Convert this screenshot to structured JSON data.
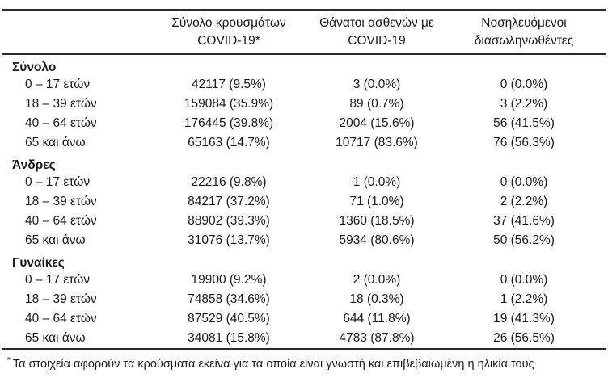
{
  "table": {
    "col_headers": [
      {
        "line1": "Σύνολο κρουσμάτων",
        "line2": "COVID-19*"
      },
      {
        "line1": "Θάνατοι ασθενών με",
        "line2": "COVID-19"
      },
      {
        "line1": "Νοσηλευόμενοι",
        "line2": "διασωληνωθέντες"
      }
    ],
    "groups": [
      {
        "label": "Σύνολο",
        "rows": [
          {
            "label": "0 – 17 ετών",
            "cases": "42117 (9.5%)",
            "deaths": "3 (0.0%)",
            "intubated": "0 (0.0%)"
          },
          {
            "label": "18 – 39 ετών",
            "cases": "159084 (35.9%)",
            "deaths": "89 (0.7%)",
            "intubated": "3 (2.2%)"
          },
          {
            "label": "40 – 64 ετών",
            "cases": "176445 (39.8%)",
            "deaths": "2004 (15.6%)",
            "intubated": "56 (41.5%)"
          },
          {
            "label": "65 και άνω",
            "cases": "65163 (14.7%)",
            "deaths": "10717 (83.6%)",
            "intubated": "76 (56.3%)"
          }
        ]
      },
      {
        "label": "Άνδρες",
        "rows": [
          {
            "label": "0 – 17 ετών",
            "cases": "22216 (9.8%)",
            "deaths": "1 (0.0%)",
            "intubated": "0 (0.0%)"
          },
          {
            "label": "18 – 39 ετών",
            "cases": "84217 (37.2%)",
            "deaths": "71 (1.0%)",
            "intubated": "2 (2.2%)"
          },
          {
            "label": "40 – 64 ετών",
            "cases": "88902 (39.3%)",
            "deaths": "1360 (18.5%)",
            "intubated": "37 (41.6%)"
          },
          {
            "label": "65 και άνω",
            "cases": "31076 (13.7%)",
            "deaths": "5934 (80.6%)",
            "intubated": "50 (56.2%)"
          }
        ]
      },
      {
        "label": "Γυναίκες",
        "rows": [
          {
            "label": "0 – 17 ετών",
            "cases": "19900 (9.2%)",
            "deaths": "2 (0.0%)",
            "intubated": "0 (0.0%)"
          },
          {
            "label": "18 – 39 ετών",
            "cases": "74858 (34.6%)",
            "deaths": "18 (0.3%)",
            "intubated": "1 (2.2%)"
          },
          {
            "label": "40 – 64 ετών",
            "cases": "87529 (40.5%)",
            "deaths": "644 (11.8%)",
            "intubated": "19 (41.3%)"
          },
          {
            "label": "65 και άνω",
            "cases": "34081 (15.8%)",
            "deaths": "4783 (87.8%)",
            "intubated": "26 (56.5%)"
          }
        ]
      }
    ],
    "footnote": {
      "marker": "*",
      "text": "Τα στοιχεία αφορούν τα κρούσματα εκείνα για τα οποία είναι γνωστή και επιβεβαιωμένη η ηλικία τους"
    }
  },
  "colors": {
    "text": "#1a1a1a",
    "rule": "#2b2b2b",
    "background": "#ffffff"
  }
}
